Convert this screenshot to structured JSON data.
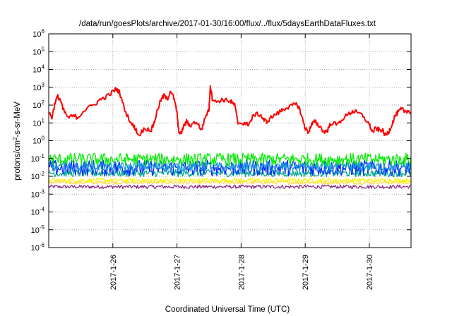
{
  "chart_data": {
    "type": "line",
    "title": "/data/run/goesPlots/archive/2017-01-30/16:00/flux/../flux/5daysEarthDataFluxes.txt",
    "xlabel": "Coordinated Universal Time (UTC)",
    "ylabel_main": "protons/cm",
    "ylabel_sup": "2",
    "ylabel_tail": "-s-sr-MeV",
    "y_scale": "log",
    "ylim": [
      1e-06,
      1000000.0
    ],
    "xlim": [
      0.0,
      5.65
    ],
    "x_unit": "days since 2017-01-25 00:00 UTC (x tick labels show dates)",
    "grid": true,
    "y_ticks": [
      {
        "base": "10",
        "exp": "-6",
        "value": -6
      },
      {
        "base": "10",
        "exp": "-5",
        "value": -5
      },
      {
        "base": "10",
        "exp": "-4",
        "value": -4
      },
      {
        "base": "10",
        "exp": "-3",
        "value": -3
      },
      {
        "base": "10",
        "exp": "-2",
        "value": -2
      },
      {
        "base": "10",
        "exp": "-1",
        "value": -1
      },
      {
        "base": "10",
        "exp": "0",
        "value": 0
      },
      {
        "base": "10",
        "exp": "1",
        "value": 1
      },
      {
        "base": "10",
        "exp": "2",
        "value": 2
      },
      {
        "base": "10",
        "exp": "3",
        "value": 3
      },
      {
        "base": "10",
        "exp": "4",
        "value": 4
      },
      {
        "base": "10",
        "exp": "5",
        "value": 5
      },
      {
        "base": "10",
        "exp": "6",
        "value": 6
      }
    ],
    "x_ticks": [
      {
        "label": "2017-1-26",
        "value": 1.0
      },
      {
        "label": "2017-1-27",
        "value": 2.0
      },
      {
        "label": "2017-1-28",
        "value": 3.0
      },
      {
        "label": "2017-1-29",
        "value": 4.0
      },
      {
        "label": "2017-1-30",
        "value": 5.0
      }
    ],
    "series": [
      {
        "name": "",
        "color": "#ff0000",
        "points": [
          [
            0.0,
            40
          ],
          [
            0.05,
            20
          ],
          [
            0.1,
            150
          ],
          [
            0.14,
            300
          ],
          [
            0.18,
            200
          ],
          [
            0.22,
            60
          ],
          [
            0.3,
            20
          ],
          [
            0.4,
            25
          ],
          [
            0.45,
            20
          ],
          [
            0.55,
            50
          ],
          [
            0.7,
            100
          ],
          [
            0.8,
            200
          ],
          [
            0.9,
            300
          ],
          [
            1.0,
            550
          ],
          [
            1.05,
            800
          ],
          [
            1.1,
            550
          ],
          [
            1.2,
            40
          ],
          [
            1.3,
            8
          ],
          [
            1.35,
            5
          ],
          [
            1.4,
            2
          ],
          [
            1.5,
            5
          ],
          [
            1.6,
            4
          ],
          [
            1.65,
            12
          ],
          [
            1.7,
            60
          ],
          [
            1.75,
            200
          ],
          [
            1.8,
            350
          ],
          [
            1.85,
            200
          ],
          [
            1.9,
            700
          ],
          [
            1.95,
            250
          ],
          [
            2.0,
            40
          ],
          [
            2.02,
            5
          ],
          [
            2.05,
            2
          ],
          [
            2.1,
            6
          ],
          [
            2.15,
            12
          ],
          [
            2.2,
            7
          ],
          [
            2.3,
            12
          ],
          [
            2.38,
            4
          ],
          [
            2.45,
            25
          ],
          [
            2.5,
            60
          ],
          [
            2.52,
            1300
          ],
          [
            2.55,
            250
          ],
          [
            2.6,
            150
          ],
          [
            2.7,
            200
          ],
          [
            2.8,
            180
          ],
          [
            2.85,
            150
          ],
          [
            2.9,
            100
          ],
          [
            2.95,
            10
          ],
          [
            3.05,
            10
          ],
          [
            3.1,
            8
          ],
          [
            3.15,
            12
          ],
          [
            3.2,
            30
          ],
          [
            3.3,
            30
          ],
          [
            3.35,
            15
          ],
          [
            3.4,
            12
          ],
          [
            3.5,
            25
          ],
          [
            3.6,
            40
          ],
          [
            3.65,
            60
          ],
          [
            3.75,
            80
          ],
          [
            3.85,
            110
          ],
          [
            3.9,
            80
          ],
          [
            3.95,
            20
          ],
          [
            4.0,
            5
          ],
          [
            4.05,
            3
          ],
          [
            4.1,
            8
          ],
          [
            4.15,
            12
          ],
          [
            4.2,
            8
          ],
          [
            4.3,
            3
          ],
          [
            4.35,
            4
          ],
          [
            4.4,
            10
          ],
          [
            4.5,
            8
          ],
          [
            4.6,
            20
          ],
          [
            4.7,
            35
          ],
          [
            4.75,
            45
          ],
          [
            4.8,
            40
          ],
          [
            4.9,
            25
          ],
          [
            5.0,
            8
          ],
          [
            5.05,
            3
          ],
          [
            5.1,
            5
          ],
          [
            5.15,
            4
          ],
          [
            5.2,
            4
          ],
          [
            5.25,
            2
          ],
          [
            5.3,
            3
          ],
          [
            5.35,
            8
          ],
          [
            5.4,
            25
          ],
          [
            5.45,
            40
          ],
          [
            5.5,
            60
          ],
          [
            5.55,
            45
          ],
          [
            5.6,
            50
          ],
          [
            5.65,
            35
          ]
        ]
      },
      {
        "name": "",
        "color": "#00ee00",
        "base": 0.09,
        "jitter": 0.35
      },
      {
        "name": "",
        "color": "#1c9ad6",
        "base": 0.035,
        "jitter": 0.25
      },
      {
        "name": "",
        "color": "#0030ff",
        "base": 0.03,
        "jitter": 0.45
      },
      {
        "name": "",
        "color": "#00a98f",
        "base": 0.015,
        "jitter": 0.2
      },
      {
        "name": "",
        "color": "#f5f50a",
        "base": 0.006,
        "jitter": 0.12
      },
      {
        "name": "",
        "color": "#ffd84c",
        "base": 0.0045,
        "jitter": 0.1
      },
      {
        "name": "",
        "color": "#8b2a82",
        "base": 0.0026,
        "jitter": 0.1
      }
    ]
  }
}
